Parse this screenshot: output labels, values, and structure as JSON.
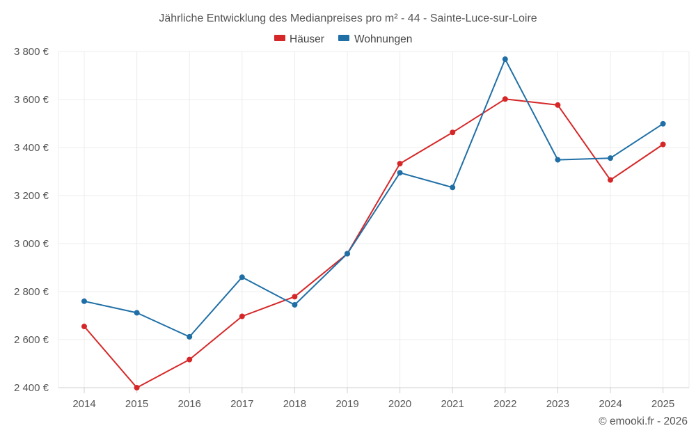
{
  "colors": {
    "houses": "#d62728",
    "apartments": "#1f6fa6"
  },
  "chart_data": {
    "type": "line",
    "title": "Jährliche Entwicklung des Medianpreises pro m² - 44 - Sainte-Luce-sur-Loire",
    "x": [
      "2014",
      "2015",
      "2016",
      "2017",
      "2018",
      "2019",
      "2020",
      "2021",
      "2022",
      "2023",
      "2024",
      "2025"
    ],
    "y_ticks": [
      2400,
      2600,
      2800,
      3000,
      3200,
      3400,
      3600,
      3800
    ],
    "y_tick_labels": [
      "2 400 €",
      "2 600 €",
      "2 800 €",
      "3 000 €",
      "3 200 €",
      "3 400 €",
      "3 600 €",
      "3 800 €"
    ],
    "ylim": [
      2400,
      3800
    ],
    "grid": true,
    "legend_position": "top-center",
    "series": [
      {
        "name": "Häuser",
        "color_key": "houses",
        "values": [
          2655,
          2400,
          2517,
          2697,
          2779,
          2958,
          3333,
          3463,
          3602,
          3577,
          3265,
          3413
        ]
      },
      {
        "name": "Wohnungen",
        "color_key": "apartments",
        "values": [
          2760,
          2712,
          2612,
          2860,
          2745,
          2958,
          3295,
          3234,
          3768,
          3349,
          3356,
          3499
        ]
      }
    ],
    "credit": "© emooki.fr - 2026"
  }
}
